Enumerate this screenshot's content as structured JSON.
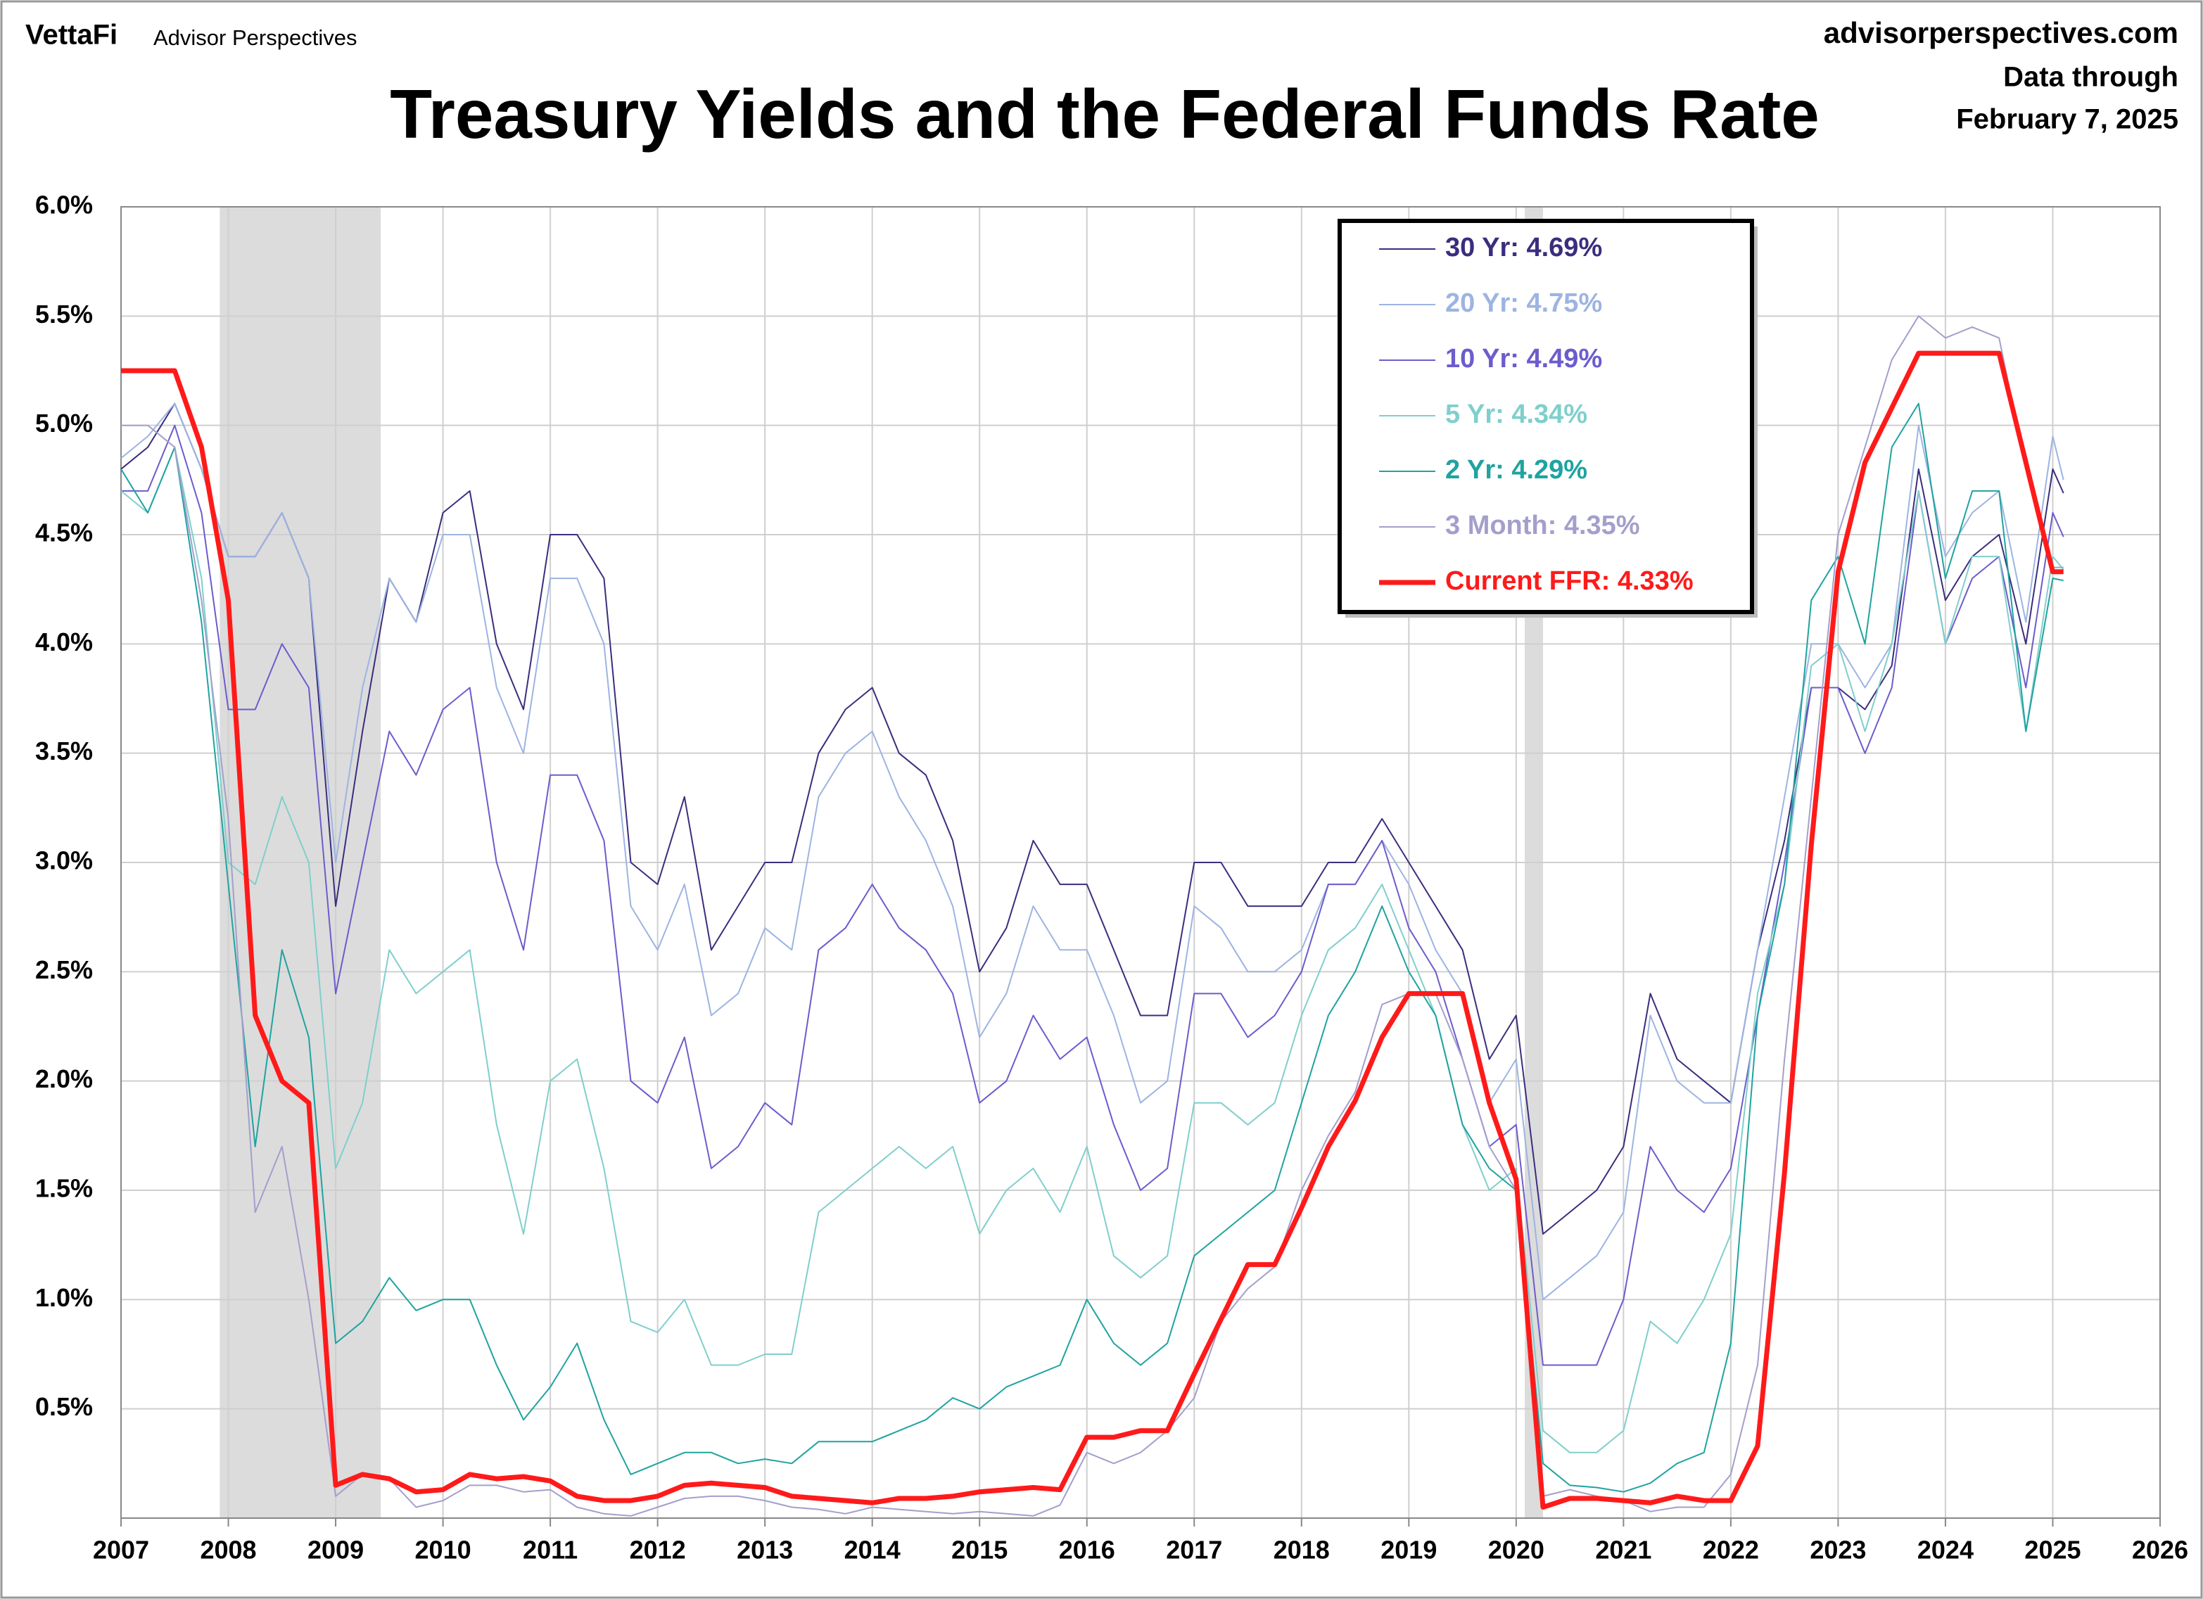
{
  "header": {
    "brand": "VettaFi",
    "brand_sub": "Advisor Perspectives",
    "site": "advisorperspectives.com",
    "data_through": "Data through",
    "date": "February 7, 2025"
  },
  "chart_data": {
    "type": "line",
    "title": "Treasury Yields and the Federal Funds Rate",
    "x": [
      2007,
      2007.25,
      2007.5,
      2007.75,
      2008,
      2008.25,
      2008.5,
      2008.75,
      2009,
      2009.25,
      2009.5,
      2009.75,
      2010,
      2010.25,
      2010.5,
      2010.75,
      2011,
      2011.25,
      2011.5,
      2011.75,
      2012,
      2012.25,
      2012.5,
      2012.75,
      2013,
      2013.25,
      2013.5,
      2013.75,
      2014,
      2014.25,
      2014.5,
      2014.75,
      2015,
      2015.25,
      2015.5,
      2015.75,
      2016,
      2016.25,
      2016.5,
      2016.75,
      2017,
      2017.25,
      2017.5,
      2017.75,
      2018,
      2018.25,
      2018.5,
      2018.75,
      2019,
      2019.25,
      2019.5,
      2019.75,
      2020,
      2020.25,
      2020.5,
      2020.75,
      2021,
      2021.25,
      2021.5,
      2021.75,
      2022,
      2022.25,
      2022.5,
      2022.75,
      2023,
      2023.25,
      2023.5,
      2023.75,
      2024,
      2024.25,
      2024.5,
      2024.75,
      2025,
      2025.1
    ],
    "series": [
      {
        "name": "30 Yr: 4.69%",
        "color": "#3b2d7d",
        "width": 2,
        "values": [
          4.8,
          4.9,
          5.1,
          4.8,
          4.4,
          4.4,
          4.6,
          4.3,
          2.8,
          3.6,
          4.3,
          4.1,
          4.6,
          4.7,
          4.0,
          3.7,
          4.5,
          4.5,
          4.3,
          3.0,
          2.9,
          3.3,
          2.6,
          2.8,
          3.0,
          3.0,
          3.5,
          3.7,
          3.8,
          3.5,
          3.4,
          3.1,
          2.5,
          2.7,
          3.1,
          2.9,
          2.9,
          2.6,
          2.3,
          2.3,
          3.0,
          3.0,
          2.8,
          2.8,
          2.8,
          3.0,
          3.0,
          3.2,
          3.0,
          2.8,
          2.6,
          2.1,
          2.3,
          1.3,
          1.4,
          1.5,
          1.7,
          2.4,
          2.1,
          2.0,
          1.9,
          2.6,
          3.1,
          3.8,
          3.8,
          3.7,
          3.9,
          4.8,
          4.2,
          4.4,
          4.5,
          4.0,
          4.8,
          4.69
        ]
      },
      {
        "name": "20 Yr: 4.75%",
        "color": "#9db4e2",
        "width": 2,
        "values": [
          4.85,
          4.95,
          5.1,
          4.8,
          4.4,
          4.4,
          4.6,
          4.3,
          3.0,
          3.8,
          4.3,
          4.1,
          4.5,
          4.5,
          3.8,
          3.5,
          4.3,
          4.3,
          4.0,
          2.8,
          2.6,
          2.9,
          2.3,
          2.4,
          2.7,
          2.6,
          3.3,
          3.5,
          3.6,
          3.3,
          3.1,
          2.8,
          2.2,
          2.4,
          2.8,
          2.6,
          2.6,
          2.3,
          1.9,
          2.0,
          2.8,
          2.7,
          2.5,
          2.5,
          2.6,
          2.9,
          2.9,
          3.1,
          2.9,
          2.6,
          2.4,
          1.9,
          2.1,
          1.0,
          1.1,
          1.2,
          1.4,
          2.3,
          2.0,
          1.9,
          1.9,
          2.6,
          3.3,
          4.0,
          4.0,
          3.8,
          4.0,
          5.0,
          4.4,
          4.6,
          4.7,
          4.1,
          4.95,
          4.75
        ]
      },
      {
        "name": "10 Yr: 4.49%",
        "color": "#6c5ccc",
        "width": 2,
        "values": [
          4.7,
          4.7,
          5.0,
          4.6,
          3.7,
          3.7,
          4.0,
          3.8,
          2.4,
          3.0,
          3.6,
          3.4,
          3.7,
          3.8,
          3.0,
          2.6,
          3.4,
          3.4,
          3.1,
          2.0,
          1.9,
          2.2,
          1.6,
          1.7,
          1.9,
          1.8,
          2.6,
          2.7,
          2.9,
          2.7,
          2.6,
          2.4,
          1.9,
          2.0,
          2.3,
          2.1,
          2.2,
          1.8,
          1.5,
          1.6,
          2.4,
          2.4,
          2.2,
          2.3,
          2.5,
          2.9,
          2.9,
          3.1,
          2.7,
          2.5,
          2.1,
          1.7,
          1.8,
          0.7,
          0.7,
          0.7,
          1.0,
          1.7,
          1.5,
          1.4,
          1.6,
          2.3,
          3.0,
          3.8,
          3.8,
          3.5,
          3.8,
          4.7,
          4.0,
          4.3,
          4.4,
          3.8,
          4.6,
          4.49
        ]
      },
      {
        "name": "5 Yr: 4.34%",
        "color": "#7fcfcc",
        "width": 2,
        "values": [
          4.7,
          4.6,
          4.9,
          4.3,
          3.0,
          2.9,
          3.3,
          3.0,
          1.6,
          1.9,
          2.6,
          2.4,
          2.5,
          2.6,
          1.8,
          1.3,
          2.0,
          2.1,
          1.6,
          0.9,
          0.85,
          1.0,
          0.7,
          0.7,
          0.75,
          0.75,
          1.4,
          1.5,
          1.6,
          1.7,
          1.6,
          1.7,
          1.3,
          1.5,
          1.6,
          1.4,
          1.7,
          1.2,
          1.1,
          1.2,
          1.9,
          1.9,
          1.8,
          1.9,
          2.3,
          2.6,
          2.7,
          2.9,
          2.6,
          2.3,
          1.8,
          1.5,
          1.6,
          0.4,
          0.3,
          0.3,
          0.4,
          0.9,
          0.8,
          1.0,
          1.3,
          2.4,
          2.9,
          3.9,
          4.0,
          3.6,
          4.0,
          4.7,
          4.0,
          4.4,
          4.4,
          3.6,
          4.4,
          4.34
        ]
      },
      {
        "name": "2 Yr: 4.29%",
        "color": "#1fa3a0",
        "width": 2,
        "values": [
          4.8,
          4.6,
          4.9,
          4.1,
          2.9,
          1.7,
          2.6,
          2.2,
          0.8,
          0.9,
          1.1,
          0.95,
          1.0,
          1.0,
          0.7,
          0.45,
          0.6,
          0.8,
          0.45,
          0.2,
          0.25,
          0.3,
          0.3,
          0.25,
          0.27,
          0.25,
          0.35,
          0.35,
          0.35,
          0.4,
          0.45,
          0.55,
          0.5,
          0.6,
          0.65,
          0.7,
          1.0,
          0.8,
          0.7,
          0.8,
          1.2,
          1.3,
          1.4,
          1.5,
          1.9,
          2.3,
          2.5,
          2.8,
          2.5,
          2.3,
          1.8,
          1.6,
          1.5,
          0.25,
          0.15,
          0.14,
          0.12,
          0.16,
          0.25,
          0.3,
          0.8,
          2.3,
          2.9,
          4.2,
          4.4,
          4.0,
          4.9,
          5.1,
          4.3,
          4.7,
          4.7,
          3.6,
          4.3,
          4.29
        ]
      },
      {
        "name": "3 Month: 4.35%",
        "color": "#a39fcc",
        "width": 2,
        "values": [
          5.0,
          5.0,
          4.9,
          4.2,
          3.2,
          1.4,
          1.7,
          1.0,
          0.1,
          0.2,
          0.18,
          0.05,
          0.08,
          0.15,
          0.15,
          0.12,
          0.13,
          0.05,
          0.02,
          0.01,
          0.05,
          0.09,
          0.1,
          0.1,
          0.08,
          0.05,
          0.04,
          0.02,
          0.05,
          0.04,
          0.03,
          0.02,
          0.03,
          0.02,
          0.01,
          0.06,
          0.3,
          0.25,
          0.3,
          0.4,
          0.55,
          0.9,
          1.05,
          1.15,
          1.5,
          1.75,
          1.95,
          2.35,
          2.4,
          2.4,
          2.1,
          1.7,
          1.5,
          0.1,
          0.13,
          0.1,
          0.08,
          0.03,
          0.05,
          0.05,
          0.2,
          0.7,
          2.1,
          3.3,
          4.5,
          4.9,
          5.3,
          5.5,
          5.4,
          5.45,
          5.4,
          4.8,
          4.35,
          4.35
        ]
      },
      {
        "name": "Current FFR: 4.33%",
        "color": "#ff1a1a",
        "width": 7,
        "values": [
          5.25,
          5.25,
          5.25,
          4.9,
          4.2,
          2.3,
          2.0,
          1.9,
          0.15,
          0.2,
          0.18,
          0.12,
          0.13,
          0.2,
          0.18,
          0.19,
          0.17,
          0.1,
          0.08,
          0.08,
          0.1,
          0.15,
          0.16,
          0.15,
          0.14,
          0.1,
          0.09,
          0.08,
          0.07,
          0.09,
          0.09,
          0.1,
          0.12,
          0.13,
          0.14,
          0.13,
          0.37,
          0.37,
          0.4,
          0.4,
          0.66,
          0.91,
          1.16,
          1.16,
          1.42,
          1.7,
          1.91,
          2.2,
          2.4,
          2.4,
          2.4,
          1.9,
          1.55,
          0.05,
          0.09,
          0.09,
          0.08,
          0.07,
          0.1,
          0.08,
          0.08,
          0.33,
          1.58,
          3.08,
          4.33,
          4.83,
          5.08,
          5.33,
          5.33,
          5.33,
          5.33,
          4.83,
          4.33,
          4.33
        ]
      }
    ],
    "recessions": [
      [
        2007.92,
        2009.42
      ],
      [
        2020.08,
        2020.25
      ]
    ],
    "xlim": [
      2007,
      2026
    ],
    "xticks": [
      2007,
      2008,
      2009,
      2010,
      2011,
      2012,
      2013,
      2014,
      2015,
      2016,
      2017,
      2018,
      2019,
      2020,
      2021,
      2022,
      2023,
      2024,
      2025,
      2026
    ],
    "ylim": [
      0,
      6
    ],
    "yticks": [
      {
        "value": 0.5,
        "label": "0.5%"
      },
      {
        "value": 1,
        "label": "1.0%"
      },
      {
        "value": 1.5,
        "label": "1.5%"
      },
      {
        "value": 2,
        "label": "2.0%"
      },
      {
        "value": 2.5,
        "label": "2.5%"
      },
      {
        "value": 3,
        "label": "3.0%"
      },
      {
        "value": 3.5,
        "label": "3.5%"
      },
      {
        "value": 4,
        "label": "4.0%"
      },
      {
        "value": 4.5,
        "label": "4.5%"
      },
      {
        "value": 5,
        "label": "5.0%"
      },
      {
        "value": 5.5,
        "label": "5.5%"
      },
      {
        "value": 6,
        "label": "6.0%"
      }
    ],
    "grid": true,
    "legend": "top-right"
  }
}
